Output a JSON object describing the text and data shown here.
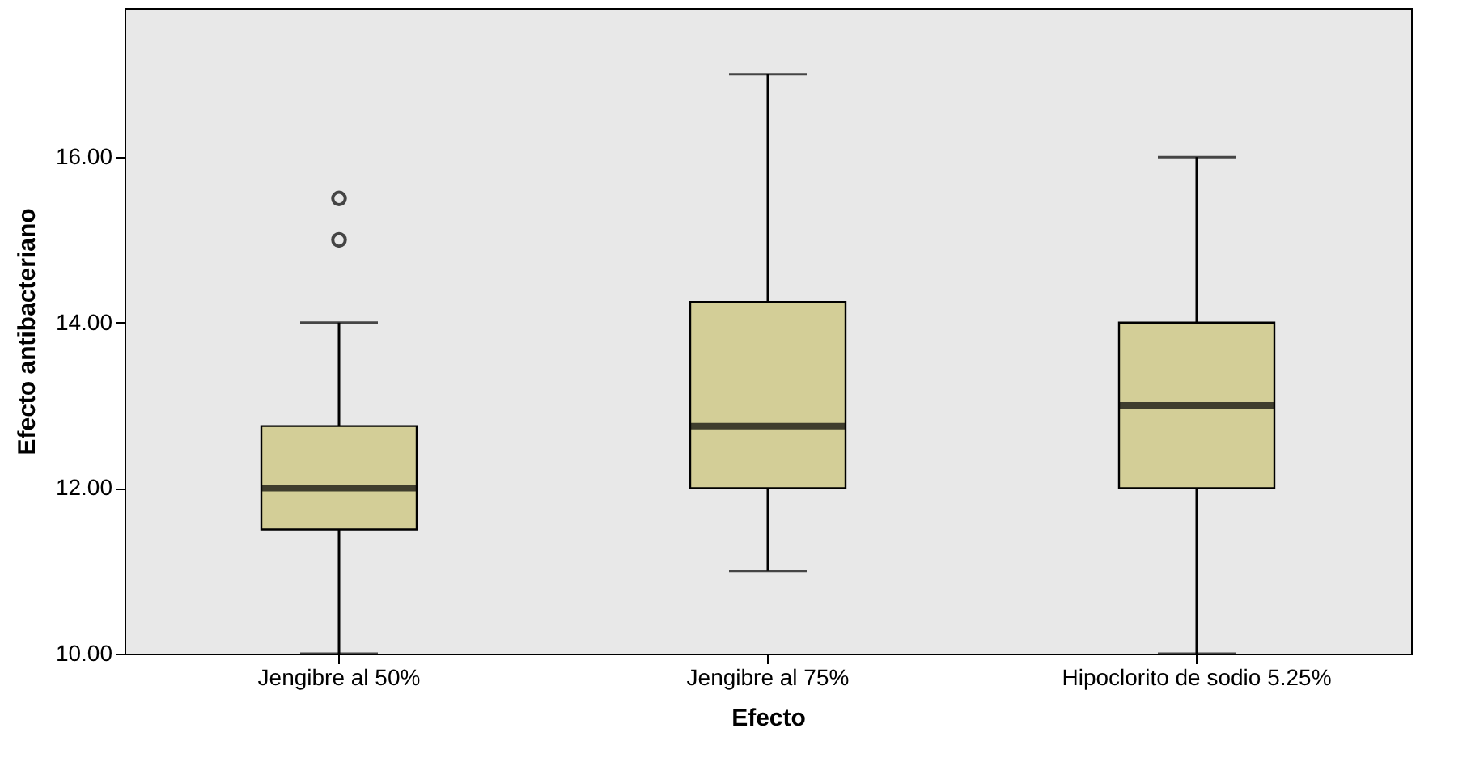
{
  "chart_data": {
    "type": "box",
    "xlabel": "Efecto",
    "ylabel": "Efecto antibacteriano",
    "categories": [
      "Jengibre al 50%",
      "Jengibre al 75%",
      "Hipoclorito de sodio 5.25%"
    ],
    "color": "#d3ce97",
    "boxes": [
      {
        "low": 10,
        "q1": 11.5,
        "median": 12,
        "q3": 12.75,
        "high": 14,
        "outliers": [
          15,
          15.5
        ]
      },
      {
        "low": 11,
        "q1": 12,
        "median": 12.75,
        "q3": 14.25,
        "high": 17
      },
      {
        "low": 10,
        "q1": 12,
        "median": 13,
        "q3": 14,
        "high": 16
      }
    ],
    "ylim": [
      10,
      17.8
    ],
    "yticks": [
      {
        "value": 10,
        "label": "10.00"
      },
      {
        "value": 12,
        "label": "12.00"
      },
      {
        "value": 14,
        "label": "14.00"
      },
      {
        "value": 16,
        "label": "16.00"
      }
    ],
    "grid": false
  }
}
